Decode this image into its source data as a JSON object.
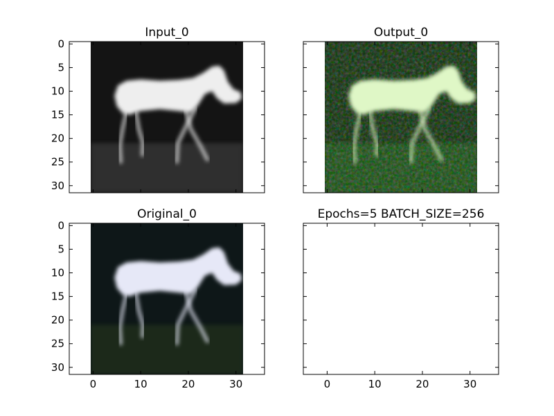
{
  "chart_data": [
    {
      "type": "image",
      "title": "Input_0",
      "xlim": [
        -5,
        36
      ],
      "ylim": [
        31.5,
        -0.5
      ],
      "xticks": [
        0,
        10,
        20,
        30
      ],
      "yticks": [
        0,
        5,
        10,
        15,
        20,
        25,
        30
      ],
      "x_ticklabels_visible": false,
      "y_ticklabels_visible": true,
      "image": {
        "extent": [
          -0.5,
          31.5
        ],
        "palette": "grayscale",
        "background": "#141414",
        "horse": "#eeeeee"
      }
    },
    {
      "type": "image",
      "title": "Output_0",
      "xlim": [
        -5,
        36
      ],
      "ylim": [
        31.5,
        -0.5
      ],
      "xticks": [
        0,
        10,
        20,
        30
      ],
      "yticks": [
        0,
        5,
        10,
        15,
        20,
        25,
        30
      ],
      "x_ticklabels_visible": false,
      "y_ticklabels_visible": false,
      "image": {
        "extent": [
          -0.5,
          31.5
        ],
        "palette": "green-noise",
        "background": "#0f2e0c",
        "horse": "#dff7c6"
      }
    },
    {
      "type": "image",
      "title": "Original_0",
      "xlim": [
        -5,
        36
      ],
      "ylim": [
        31.5,
        -0.5
      ],
      "xticks": [
        0,
        10,
        20,
        30
      ],
      "yticks": [
        0,
        5,
        10,
        15,
        20,
        25,
        30
      ],
      "x_ticklabels_visible": true,
      "y_ticklabels_visible": true,
      "image": {
        "extent": [
          -0.5,
          31.5
        ],
        "palette": "color",
        "background": "#0e1718",
        "horse": "#e6e8f7"
      }
    },
    {
      "type": "empty",
      "title": "Epochs=5 BATCH_SIZE=256",
      "xlim": [
        -5,
        36
      ],
      "ylim": [
        31.5,
        -0.5
      ],
      "xticks": [
        0,
        10,
        20,
        30
      ],
      "yticks": [
        0,
        5,
        10,
        15,
        20,
        25,
        30
      ],
      "x_ticklabels_visible": true,
      "y_ticklabels_visible": false,
      "image": null
    }
  ]
}
